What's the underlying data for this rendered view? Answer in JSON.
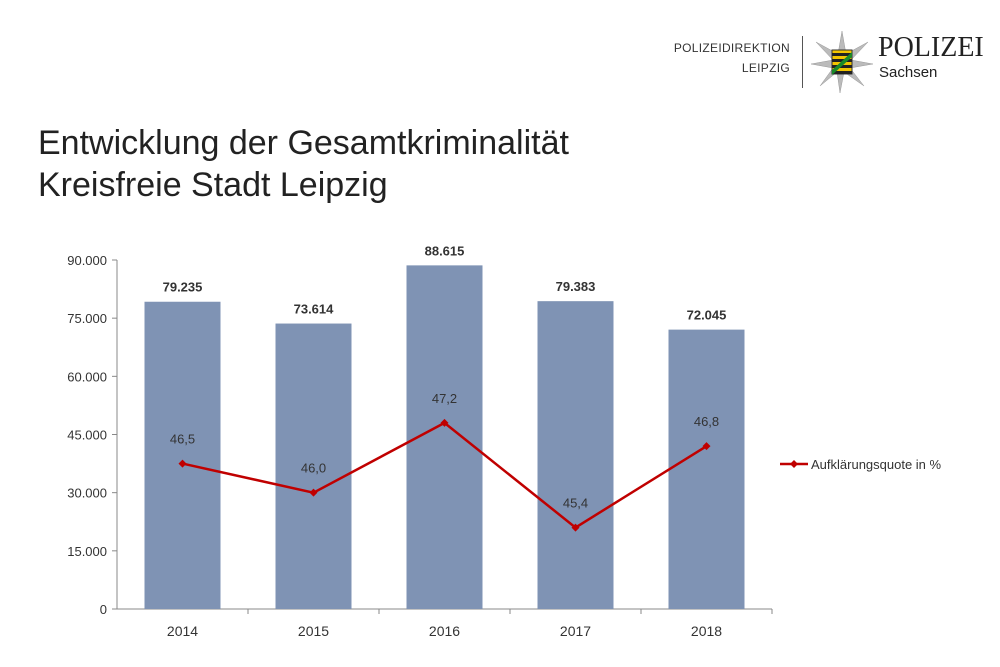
{
  "logo": {
    "line1": "POLIZEIDIREKTION",
    "line2": "LEIPZIG",
    "brand": "POLIZEI",
    "region": "Sachsen"
  },
  "title": {
    "line1": "Entwicklung der Gesamtkriminalität",
    "line2": "Kreisfreie Stadt Leipzig"
  },
  "chart_data": {
    "type": "bar+line",
    "categories": [
      "2014",
      "2015",
      "2016",
      "2017",
      "2018"
    ],
    "bar_values": [
      79235,
      73614,
      88615,
      79383,
      72045
    ],
    "bar_labels": [
      "79.235",
      "73.614",
      "88.615",
      "79.383",
      "72.045"
    ],
    "line_series": {
      "name": "Aufklärungsquote in %",
      "values": [
        46.5,
        46.0,
        47.2,
        45.4,
        46.8
      ],
      "labels": [
        "46,5",
        "46,0",
        "47,2",
        "45,4",
        "46,8"
      ],
      "secondary_axis_hidden_range": [
        44,
        50
      ]
    },
    "ylim": [
      0,
      90000
    ],
    "yticks": [
      "0",
      "15.000",
      "30.000",
      "45.000",
      "60.000",
      "75.000",
      "90.000"
    ],
    "grid": false,
    "legend": "right",
    "colors": {
      "bar": "#7f93b4",
      "line": "#c00000"
    }
  }
}
